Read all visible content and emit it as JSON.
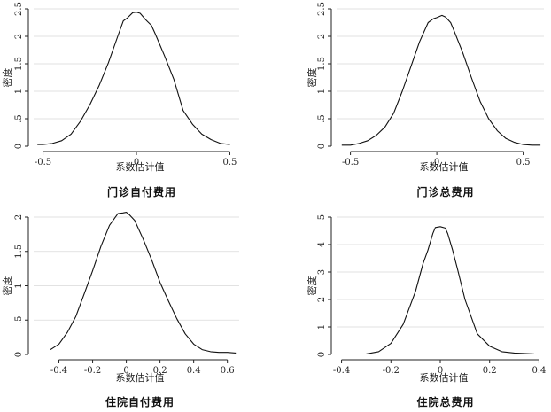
{
  "chart_data": [
    {
      "type": "line",
      "caption": "门诊自付费用",
      "xlabel": "系数估计值",
      "ylabel": "密度",
      "xlim": [
        -0.55,
        0.55
      ],
      "ylim": [
        0,
        2.5
      ],
      "xticks": [
        -0.5,
        0,
        0.5
      ],
      "xtick_labels": [
        "-0.5",
        "0",
        "0.5"
      ],
      "yticks": [
        0,
        0.5,
        1,
        1.5,
        2,
        2.5
      ],
      "ytick_labels": [
        "0",
        ".5",
        "1",
        "1.5",
        "2",
        "2.5"
      ],
      "grid": true,
      "series": [
        {
          "x": [
            -0.53,
            -0.5,
            -0.45,
            -0.4,
            -0.35,
            -0.3,
            -0.25,
            -0.2,
            -0.15,
            -0.1,
            -0.07,
            -0.05,
            -0.02,
            0,
            0.02,
            0.05,
            0.08,
            0.1,
            0.15,
            0.2,
            0.25,
            0.3,
            0.35,
            0.4,
            0.45,
            0.5
          ],
          "y": [
            0.03,
            0.03,
            0.05,
            0.1,
            0.22,
            0.45,
            0.75,
            1.1,
            1.52,
            2.0,
            2.28,
            2.33,
            2.43,
            2.44,
            2.42,
            2.3,
            2.2,
            2.05,
            1.65,
            1.22,
            0.65,
            0.4,
            0.22,
            0.12,
            0.05,
            0.03
          ]
        }
      ]
    },
    {
      "type": "line",
      "caption": "门诊总费用",
      "xlabel": "系数估计值",
      "ylabel": "密度",
      "xlim": [
        -0.58,
        0.62
      ],
      "ylim": [
        0,
        2.5
      ],
      "xticks": [
        -0.5,
        0,
        0.5
      ],
      "xtick_labels": [
        "-0.5",
        "0",
        "0.5"
      ],
      "yticks": [
        0,
        0.5,
        1,
        1.5,
        2,
        2.5
      ],
      "ytick_labels": [
        "0",
        ".5",
        "1",
        "1.5",
        "2",
        "2.5"
      ],
      "grid": true,
      "series": [
        {
          "x": [
            -0.55,
            -0.5,
            -0.45,
            -0.4,
            -0.35,
            -0.3,
            -0.25,
            -0.2,
            -0.15,
            -0.1,
            -0.05,
            -0.02,
            0,
            0.03,
            0.05,
            0.08,
            0.1,
            0.15,
            0.2,
            0.25,
            0.3,
            0.35,
            0.4,
            0.45,
            0.5,
            0.55,
            0.6
          ],
          "y": [
            0.02,
            0.02,
            0.05,
            0.1,
            0.2,
            0.35,
            0.6,
            1.0,
            1.45,
            1.9,
            2.25,
            2.32,
            2.34,
            2.38,
            2.35,
            2.25,
            2.1,
            1.7,
            1.25,
            0.82,
            0.5,
            0.28,
            0.14,
            0.07,
            0.03,
            0.02,
            0.02
          ]
        }
      ]
    },
    {
      "type": "line",
      "caption": "住院自付费用",
      "xlabel": "系数估计值",
      "ylabel": "密度",
      "xlim": [
        -0.55,
        0.67
      ],
      "ylim": [
        0,
        2.0
      ],
      "xticks": [
        -0.4,
        -0.2,
        0,
        0.2,
        0.4,
        0.6
      ],
      "xtick_labels": [
        "-0.4",
        "-0.2",
        "0",
        "0.2",
        "0.4",
        "0.6"
      ],
      "yticks": [
        0,
        0.5,
        1,
        1.5,
        2
      ],
      "ytick_labels": [
        "0",
        ".5",
        "1",
        "1.5",
        "2"
      ],
      "grid": true,
      "series": [
        {
          "x": [
            -0.45,
            -0.4,
            -0.35,
            -0.3,
            -0.25,
            -0.2,
            -0.15,
            -0.1,
            -0.05,
            -0.02,
            0,
            0.02,
            0.05,
            0.1,
            0.15,
            0.2,
            0.25,
            0.3,
            0.35,
            0.4,
            0.45,
            0.5,
            0.55,
            0.6,
            0.65
          ],
          "y": [
            0.07,
            0.15,
            0.32,
            0.55,
            0.88,
            1.22,
            1.58,
            1.88,
            2.05,
            2.06,
            2.07,
            2.03,
            1.95,
            1.68,
            1.38,
            1.05,
            0.78,
            0.52,
            0.3,
            0.15,
            0.07,
            0.04,
            0.03,
            0.03,
            0.02
          ]
        }
      ]
    },
    {
      "type": "line",
      "caption": "住院总费用",
      "xlabel": "系数估计值",
      "ylabel": "密度",
      "xlim": [
        -0.42,
        0.42
      ],
      "ylim": [
        0,
        5
      ],
      "xticks": [
        -0.4,
        -0.2,
        0,
        0.2,
        0.4
      ],
      "xtick_labels": [
        "-0.4",
        "-0.2",
        "0",
        "0.2",
        "0.4"
      ],
      "yticks": [
        0,
        1,
        2,
        3,
        4,
        5
      ],
      "ytick_labels": [
        "0",
        "1",
        "2",
        "3",
        "4",
        "5"
      ],
      "grid": true,
      "series": [
        {
          "x": [
            -0.3,
            -0.25,
            -0.2,
            -0.15,
            -0.1,
            -0.07,
            -0.05,
            -0.03,
            -0.02,
            0,
            0.02,
            0.03,
            0.05,
            0.07,
            0.1,
            0.15,
            0.2,
            0.25,
            0.3,
            0.35,
            0.38
          ],
          "y": [
            0.02,
            0.1,
            0.4,
            1.1,
            2.3,
            3.3,
            3.8,
            4.4,
            4.62,
            4.65,
            4.6,
            4.4,
            3.8,
            3.1,
            2.0,
            0.75,
            0.3,
            0.1,
            0.05,
            0.03,
            0.02
          ]
        }
      ]
    }
  ]
}
